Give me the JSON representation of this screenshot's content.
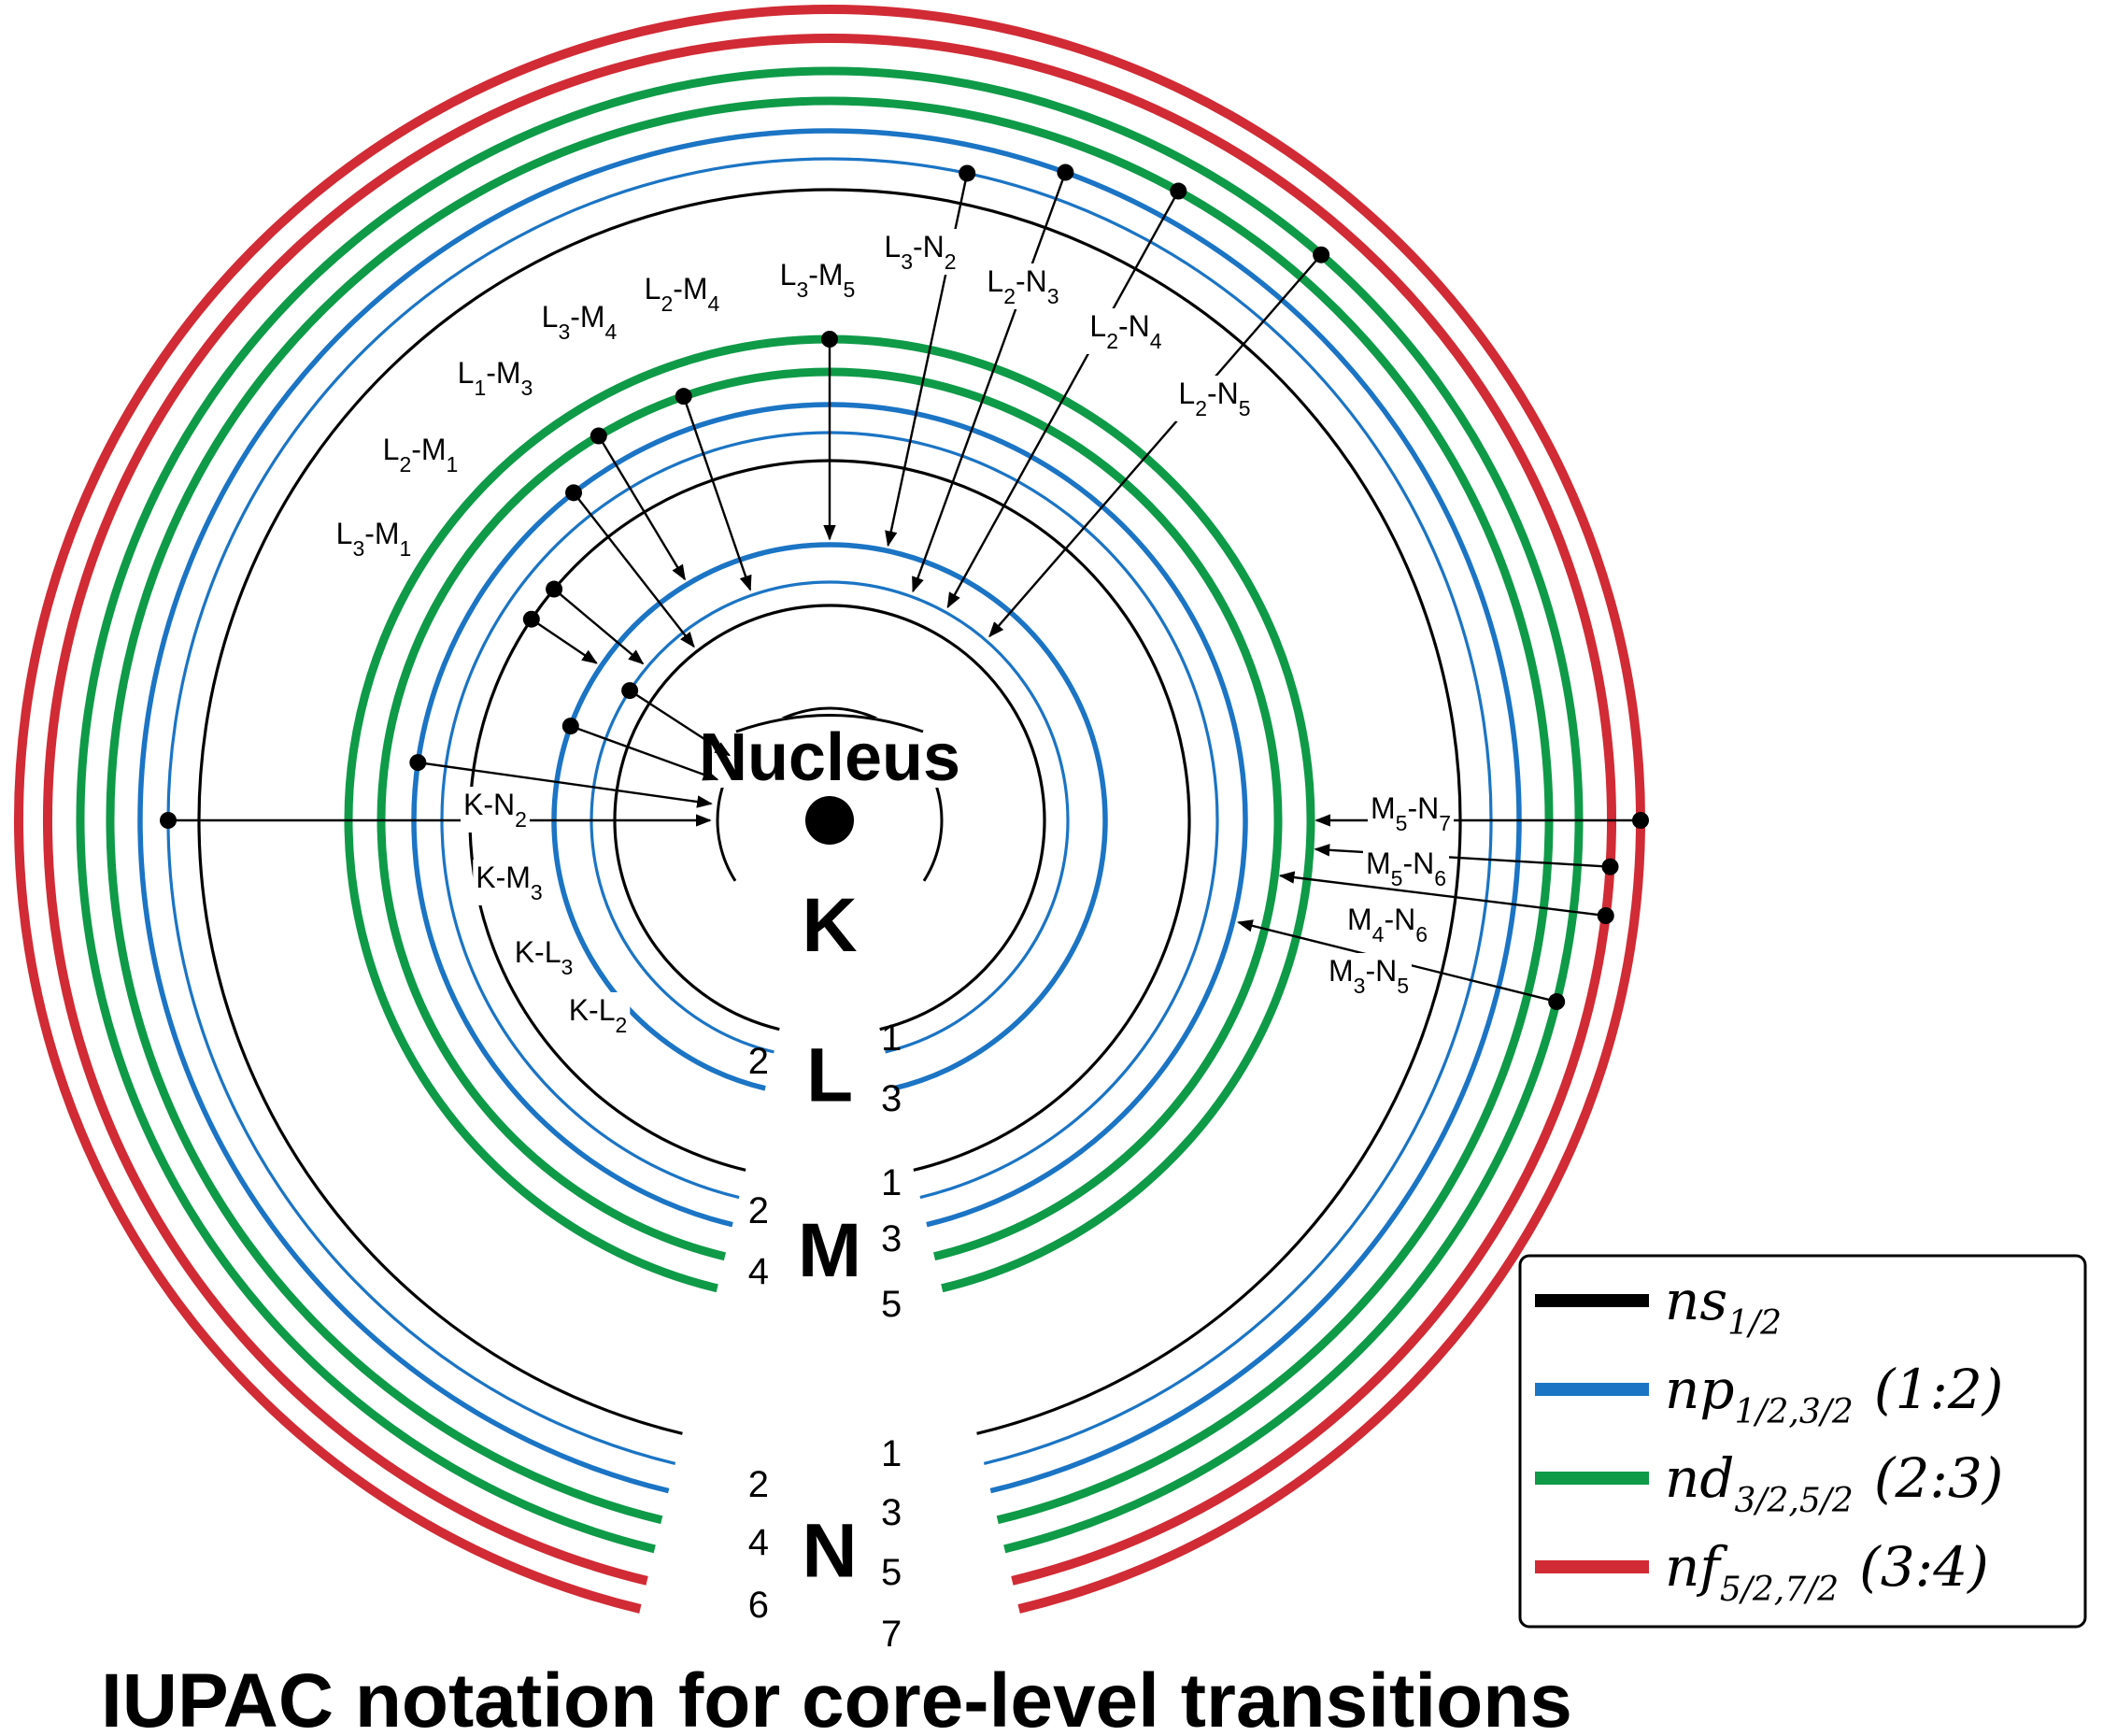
{
  "title": "IUPAC notation for core-level transitions",
  "nucleus_label": "Nucleus",
  "colors": {
    "s": "#000000",
    "p": "#1b74c4",
    "d": "#0f9a48",
    "f": "#d12b35"
  },
  "shells": [
    {
      "name": "K",
      "subshells": []
    },
    {
      "name": "L",
      "subshells": [
        {
          "index": "1",
          "type": "s"
        },
        {
          "index": "2",
          "type": "p"
        },
        {
          "index": "3",
          "type": "p"
        }
      ]
    },
    {
      "name": "M",
      "subshells": [
        {
          "index": "1",
          "type": "s"
        },
        {
          "index": "2",
          "type": "p"
        },
        {
          "index": "3",
          "type": "p"
        },
        {
          "index": "4",
          "type": "d"
        },
        {
          "index": "5",
          "type": "d"
        }
      ]
    },
    {
      "name": "N",
      "subshells": [
        {
          "index": "1",
          "type": "s"
        },
        {
          "index": "2",
          "type": "p"
        },
        {
          "index": "3",
          "type": "p"
        },
        {
          "index": "4",
          "type": "d"
        },
        {
          "index": "5",
          "type": "d"
        },
        {
          "index": "6",
          "type": "f"
        },
        {
          "index": "7",
          "type": "f"
        }
      ]
    }
  ],
  "transitions": [
    {
      "from": "L3",
      "to": "M1"
    },
    {
      "from": "L2",
      "to": "M1"
    },
    {
      "from": "L1",
      "to": "M3"
    },
    {
      "from": "L3",
      "to": "M4"
    },
    {
      "from": "L2",
      "to": "M4"
    },
    {
      "from": "L3",
      "to": "M5"
    },
    {
      "from": "L3",
      "to": "N2"
    },
    {
      "from": "L2",
      "to": "N3"
    },
    {
      "from": "L2",
      "to": "N4"
    },
    {
      "from": "L2",
      "to": "N5"
    },
    {
      "from": "K",
      "to": "N2"
    },
    {
      "from": "K",
      "to": "M3"
    },
    {
      "from": "K",
      "to": "L3"
    },
    {
      "from": "K",
      "to": "L2"
    },
    {
      "from": "M5",
      "to": "N7"
    },
    {
      "from": "M5",
      "to": "N6"
    },
    {
      "from": "M4",
      "to": "N6"
    },
    {
      "from": "M3",
      "to": "N5"
    }
  ],
  "legend": [
    {
      "type": "s",
      "term": "ns",
      "sub": "1/2",
      "ratio": ""
    },
    {
      "type": "p",
      "term": "np",
      "sub": "1/2,3/2",
      "ratio": "(1:2)"
    },
    {
      "type": "d",
      "term": "nd",
      "sub": "3/2,5/2",
      "ratio": "(2:3)"
    },
    {
      "type": "f",
      "term": "nf",
      "sub": "5/2,7/2",
      "ratio": "(3:4)"
    }
  ]
}
